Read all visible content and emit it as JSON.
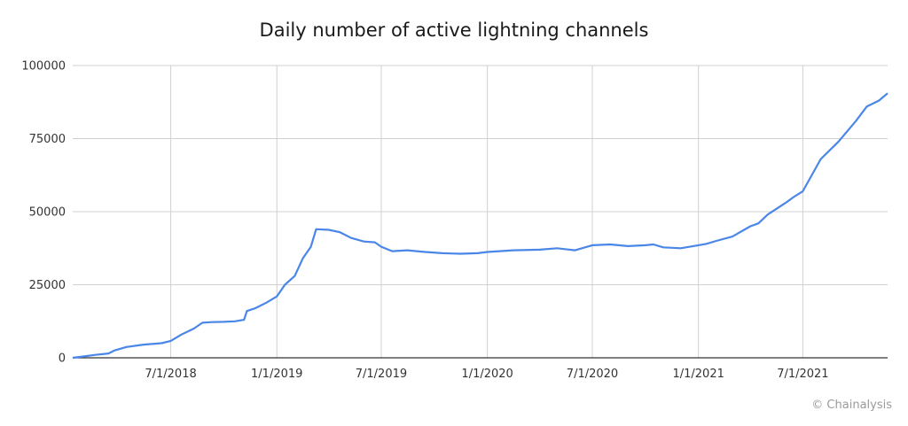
{
  "chart_data": {
    "type": "line",
    "title": "Daily number of active lightning channels",
    "xlabel": "",
    "ylabel": "",
    "grid": true,
    "legend": "none",
    "x_range": [
      "2018-01-12",
      "2021-11-25"
    ],
    "ylim": [
      0,
      100000
    ],
    "y_ticks": [
      {
        "value": 0,
        "label": "0"
      },
      {
        "value": 25000,
        "label": "25000"
      },
      {
        "value": 50000,
        "label": "50000"
      },
      {
        "value": 75000,
        "label": "75000"
      },
      {
        "value": 100000,
        "label": "100000"
      }
    ],
    "x_ticks": [
      {
        "date": "2018-07-01",
        "label": "7/1/2018"
      },
      {
        "date": "2019-01-01",
        "label": "1/1/2019"
      },
      {
        "date": "2019-07-01",
        "label": "7/1/2019"
      },
      {
        "date": "2020-01-01",
        "label": "1/1/2020"
      },
      {
        "date": "2020-07-01",
        "label": "7/1/2020"
      },
      {
        "date": "2021-01-01",
        "label": "1/1/2021"
      },
      {
        "date": "2021-07-01",
        "label": "7/1/2021"
      }
    ],
    "series": [
      {
        "color": "#4a86e8",
        "points": [
          [
            "2018-01-12",
            0
          ],
          [
            "2018-02-01",
            500
          ],
          [
            "2018-02-20",
            1000
          ],
          [
            "2018-03-15",
            1500
          ],
          [
            "2018-03-25",
            2500
          ],
          [
            "2018-04-15",
            3700
          ],
          [
            "2018-05-15",
            4500
          ],
          [
            "2018-06-15",
            5000
          ],
          [
            "2018-07-01",
            5800
          ],
          [
            "2018-07-20",
            8000
          ],
          [
            "2018-08-10",
            10000
          ],
          [
            "2018-08-25",
            12000
          ],
          [
            "2018-09-10",
            12200
          ],
          [
            "2018-10-01",
            12300
          ],
          [
            "2018-10-20",
            12500
          ],
          [
            "2018-11-05",
            13000
          ],
          [
            "2018-11-10",
            16000
          ],
          [
            "2018-11-25",
            17000
          ],
          [
            "2018-12-15",
            19000
          ],
          [
            "2019-01-01",
            21000
          ],
          [
            "2019-01-15",
            25000
          ],
          [
            "2019-02-01",
            28000
          ],
          [
            "2019-02-15",
            34000
          ],
          [
            "2019-03-01",
            38000
          ],
          [
            "2019-03-10",
            44000
          ],
          [
            "2019-04-01",
            43800
          ],
          [
            "2019-04-20",
            43000
          ],
          [
            "2019-05-10",
            41000
          ],
          [
            "2019-06-01",
            39800
          ],
          [
            "2019-06-20",
            39500
          ],
          [
            "2019-07-01",
            38000
          ],
          [
            "2019-07-20",
            36500
          ],
          [
            "2019-08-15",
            36800
          ],
          [
            "2019-09-15",
            36200
          ],
          [
            "2019-10-15",
            35800
          ],
          [
            "2019-11-15",
            35600
          ],
          [
            "2019-12-15",
            35800
          ],
          [
            "2020-01-01",
            36200
          ],
          [
            "2020-02-15",
            36800
          ],
          [
            "2020-04-01",
            37000
          ],
          [
            "2020-05-01",
            37500
          ],
          [
            "2020-06-01",
            36800
          ],
          [
            "2020-07-01",
            38500
          ],
          [
            "2020-08-01",
            38800
          ],
          [
            "2020-09-01",
            38200
          ],
          [
            "2020-10-01",
            38500
          ],
          [
            "2020-10-15",
            38800
          ],
          [
            "2020-11-01",
            37800
          ],
          [
            "2020-12-01",
            37500
          ],
          [
            "2021-01-01",
            38500
          ],
          [
            "2021-01-15",
            39000
          ],
          [
            "2021-02-01",
            40000
          ],
          [
            "2021-03-01",
            41500
          ],
          [
            "2021-04-01",
            45000
          ],
          [
            "2021-04-15",
            46000
          ],
          [
            "2021-05-01",
            49000
          ],
          [
            "2021-06-01",
            53000
          ],
          [
            "2021-06-15",
            55000
          ],
          [
            "2021-07-01",
            57000
          ],
          [
            "2021-08-01",
            68000
          ],
          [
            "2021-09-01",
            74000
          ],
          [
            "2021-10-01",
            81000
          ],
          [
            "2021-10-20",
            86000
          ],
          [
            "2021-11-10",
            88000
          ],
          [
            "2021-11-25",
            90500
          ]
        ]
      }
    ]
  },
  "credit": "© Chainalysis"
}
